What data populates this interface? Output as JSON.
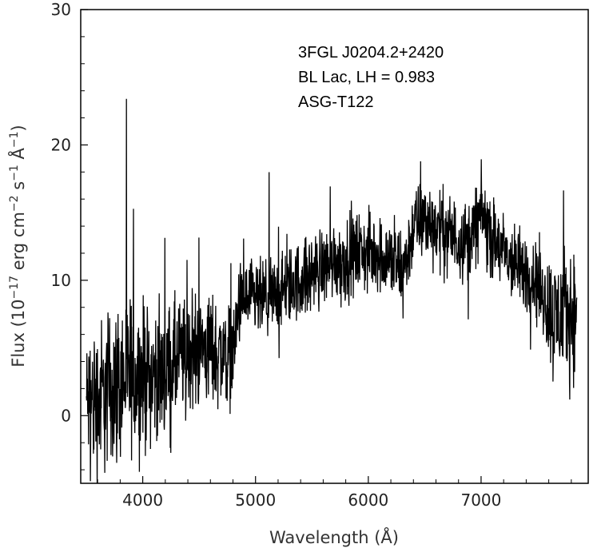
{
  "chart_data": {
    "type": "line",
    "xlabel": "Wavelength (Å)",
    "ylabel_parts": {
      "prefix": "Flux (10",
      "exp1": "−17",
      "mid1": " erg cm",
      "exp2": "−2",
      "mid2": " s",
      "exp3": "−1",
      "suffix_a": " Å",
      "exp4": "−1",
      "suffix_b": ")"
    },
    "xlim": [
      3450,
      7950
    ],
    "ylim": [
      -5,
      30
    ],
    "xticks": [
      4000,
      5000,
      6000,
      7000
    ],
    "xtick_labels": [
      "4000",
      "5000",
      "6000",
      "7000"
    ],
    "yticks": [
      0,
      10,
      20,
      30
    ],
    "ytick_labels": [
      "0",
      "10",
      "20",
      "30"
    ],
    "annotations": [
      "3FGL J0204.2+2420",
      "BL Lac, LH = 0.983",
      "ASG-T122"
    ],
    "series": [
      {
        "color": "#000000",
        "x": [
          3500,
          3600,
          3700,
          3800,
          3900,
          4000,
          4100,
          4200,
          4300,
          4400,
          4500,
          4600,
          4700,
          4800,
          4850,
          4900,
          5000,
          5100,
          5200,
          5300,
          5400,
          5500,
          5600,
          5700,
          5800,
          5900,
          6000,
          6100,
          6200,
          6300,
          6350,
          6400,
          6500,
          6600,
          6700,
          6800,
          6900,
          7000,
          7050,
          7100,
          7200,
          7300,
          7400,
          7500,
          7600,
          7650,
          7700,
          7800,
          7850
        ],
        "y": [
          1,
          1,
          2,
          2.5,
          3,
          3,
          3,
          3,
          4,
          4.5,
          5,
          5,
          4.5,
          4.5,
          8,
          8.5,
          8.5,
          8.5,
          9,
          9.5,
          10,
          10.5,
          11,
          11.5,
          11.5,
          12,
          12,
          12,
          11.5,
          10.5,
          12,
          14,
          14.5,
          14,
          13.5,
          13,
          13,
          15,
          14,
          13,
          12,
          11,
          10.5,
          10,
          8,
          7,
          7.5,
          7.5,
          8
        ],
        "noise": [
          4,
          5,
          5,
          5,
          5,
          4.5,
          4,
          4,
          4,
          3.5,
          3.5,
          3.5,
          3.5,
          3,
          2.5,
          2.5,
          2.5,
          2.5,
          2.5,
          2.5,
          2.5,
          2.5,
          2.5,
          2.5,
          2.5,
          2.5,
          2.5,
          2.5,
          2.5,
          3,
          2.5,
          2.5,
          2.5,
          2.5,
          2.5,
          2.5,
          2.5,
          2.5,
          2.5,
          2.5,
          2.5,
          2.5,
          2.5,
          2.5,
          3.5,
          4,
          4,
          4,
          4
        ]
      }
    ],
    "grid": false,
    "legend": "none"
  }
}
